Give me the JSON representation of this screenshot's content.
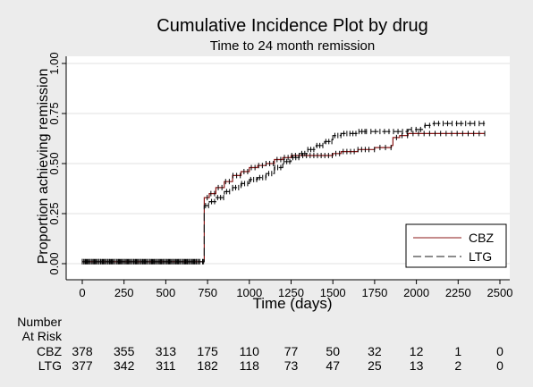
{
  "chart_data": {
    "type": "line",
    "step": true,
    "title": "Cumulative Incidence Plot by drug",
    "subtitle": "Time to 24 month remission",
    "xlabel": "Time (days)",
    "ylabel": "Proportion achieving remission",
    "xlim": [
      0,
      2500
    ],
    "ylim": [
      0,
      1
    ],
    "xticks": [
      0,
      250,
      500,
      750,
      1000,
      1250,
      1500,
      1750,
      2000,
      2250,
      2500
    ],
    "yticks": [
      "0.00",
      "0.25",
      "0.50",
      "0.75",
      "1.00"
    ],
    "grid": true,
    "legend_position": "bottom-right",
    "series": [
      {
        "name": "CBZ",
        "color": "#8b1a1a",
        "dash": "solid",
        "points": [
          [
            0,
            0.01
          ],
          [
            728,
            0.01
          ],
          [
            730,
            0.33
          ],
          [
            760,
            0.35
          ],
          [
            800,
            0.38
          ],
          [
            850,
            0.41
          ],
          [
            900,
            0.44
          ],
          [
            950,
            0.46
          ],
          [
            1000,
            0.48
          ],
          [
            1050,
            0.49
          ],
          [
            1100,
            0.5
          ],
          [
            1150,
            0.52
          ],
          [
            1200,
            0.53
          ],
          [
            1250,
            0.54
          ],
          [
            1300,
            0.54
          ],
          [
            1400,
            0.54
          ],
          [
            1500,
            0.55
          ],
          [
            1550,
            0.56
          ],
          [
            1650,
            0.57
          ],
          [
            1750,
            0.58
          ],
          [
            1850,
            0.59
          ],
          [
            1860,
            0.63
          ],
          [
            1900,
            0.64
          ],
          [
            1950,
            0.65
          ],
          [
            2000,
            0.65
          ],
          [
            2410,
            0.65
          ]
        ]
      },
      {
        "name": "LTG",
        "color": "#1a1a1a",
        "dash": "dashed",
        "points": [
          [
            0,
            0.01
          ],
          [
            728,
            0.01
          ],
          [
            730,
            0.29
          ],
          [
            760,
            0.31
          ],
          [
            800,
            0.33
          ],
          [
            850,
            0.36
          ],
          [
            900,
            0.38
          ],
          [
            950,
            0.4
          ],
          [
            1000,
            0.42
          ],
          [
            1050,
            0.43
          ],
          [
            1100,
            0.45
          ],
          [
            1150,
            0.48
          ],
          [
            1200,
            0.51
          ],
          [
            1250,
            0.53
          ],
          [
            1300,
            0.55
          ],
          [
            1350,
            0.57
          ],
          [
            1400,
            0.59
          ],
          [
            1450,
            0.61
          ],
          [
            1500,
            0.64
          ],
          [
            1550,
            0.65
          ],
          [
            1650,
            0.66
          ],
          [
            1750,
            0.66
          ],
          [
            1850,
            0.66
          ],
          [
            1950,
            0.67
          ],
          [
            2050,
            0.69
          ],
          [
            2100,
            0.7
          ],
          [
            2410,
            0.7
          ]
        ]
      }
    ]
  },
  "risk_table": {
    "header_line1": "Number",
    "header_line2": "At Risk",
    "rows": [
      {
        "label": "CBZ",
        "values": [
          "378",
          "355",
          "313",
          "175",
          "110",
          "77",
          "50",
          "32",
          "12",
          "1",
          "0"
        ]
      },
      {
        "label": "LTG",
        "values": [
          "377",
          "342",
          "311",
          "182",
          "118",
          "73",
          "47",
          "25",
          "13",
          "2",
          "0"
        ]
      }
    ]
  }
}
